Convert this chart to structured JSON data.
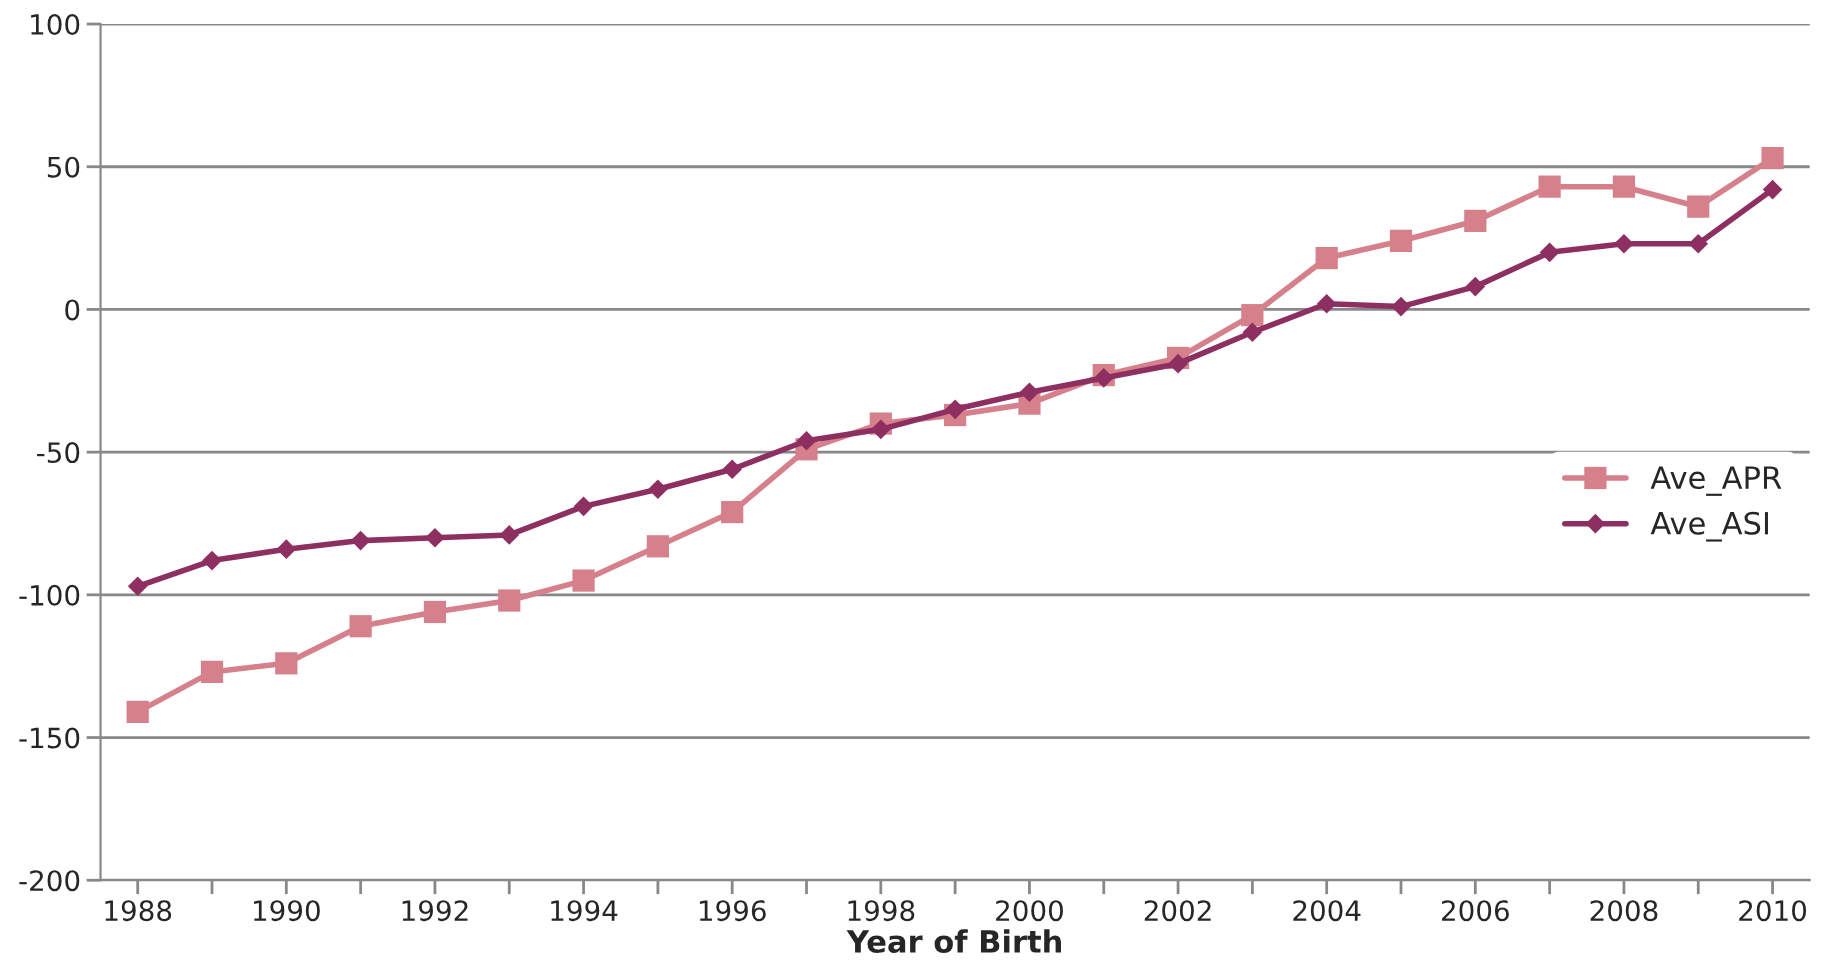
{
  "chart_data": {
    "type": "line",
    "xlabel": "Year of Birth",
    "x": [
      1988,
      1989,
      1990,
      1991,
      1992,
      1993,
      1994,
      1995,
      1996,
      1997,
      1998,
      1999,
      2000,
      2001,
      2002,
      2003,
      2004,
      2005,
      2006,
      2007,
      2008,
      2009,
      2010
    ],
    "series": [
      {
        "name": "Ave_APR",
        "color": "#d6808c",
        "marker": "square",
        "values": [
          -141,
          -127,
          -124,
          -111,
          -106,
          -102,
          -95,
          -83,
          -71,
          -49,
          -40,
          -37,
          -33,
          -23,
          -17,
          -2,
          18,
          24,
          31,
          43,
          43,
          36,
          53
        ]
      },
      {
        "name": "Ave_ASI",
        "color": "#8e2f62",
        "marker": "diamond",
        "values": [
          -97,
          -88,
          -84,
          -81,
          -80,
          -79,
          -69,
          -63,
          -56,
          -46,
          -42,
          -35,
          -29,
          -24,
          -19,
          -8,
          2,
          1,
          8,
          20,
          23,
          23,
          42
        ]
      }
    ],
    "xlim": [
      1987.5,
      2010.5
    ],
    "xticks": [
      1988,
      {
        "value": 1989,
        "label": null
      },
      1990,
      {
        "value": 1991,
        "label": null
      },
      1992,
      {
        "value": 1993,
        "label": null
      },
      1994,
      {
        "value": 1995,
        "label": null
      },
      1996,
      {
        "value": 1997,
        "label": null
      },
      1998,
      {
        "value": 1999,
        "label": null
      },
      2000,
      {
        "value": 2001,
        "label": null
      },
      2002,
      {
        "value": 2003,
        "label": null
      },
      2004,
      {
        "value": 2005,
        "label": null
      },
      2006,
      {
        "value": 2007,
        "label": null
      },
      2008,
      {
        "value": 2009,
        "label": null
      },
      2010
    ],
    "ylim": [
      -200,
      100
    ],
    "yticks": [
      -200,
      -150,
      -100,
      -50,
      0,
      50,
      100
    ],
    "grid": "y",
    "legend": "right",
    "line_style": "solid"
  }
}
